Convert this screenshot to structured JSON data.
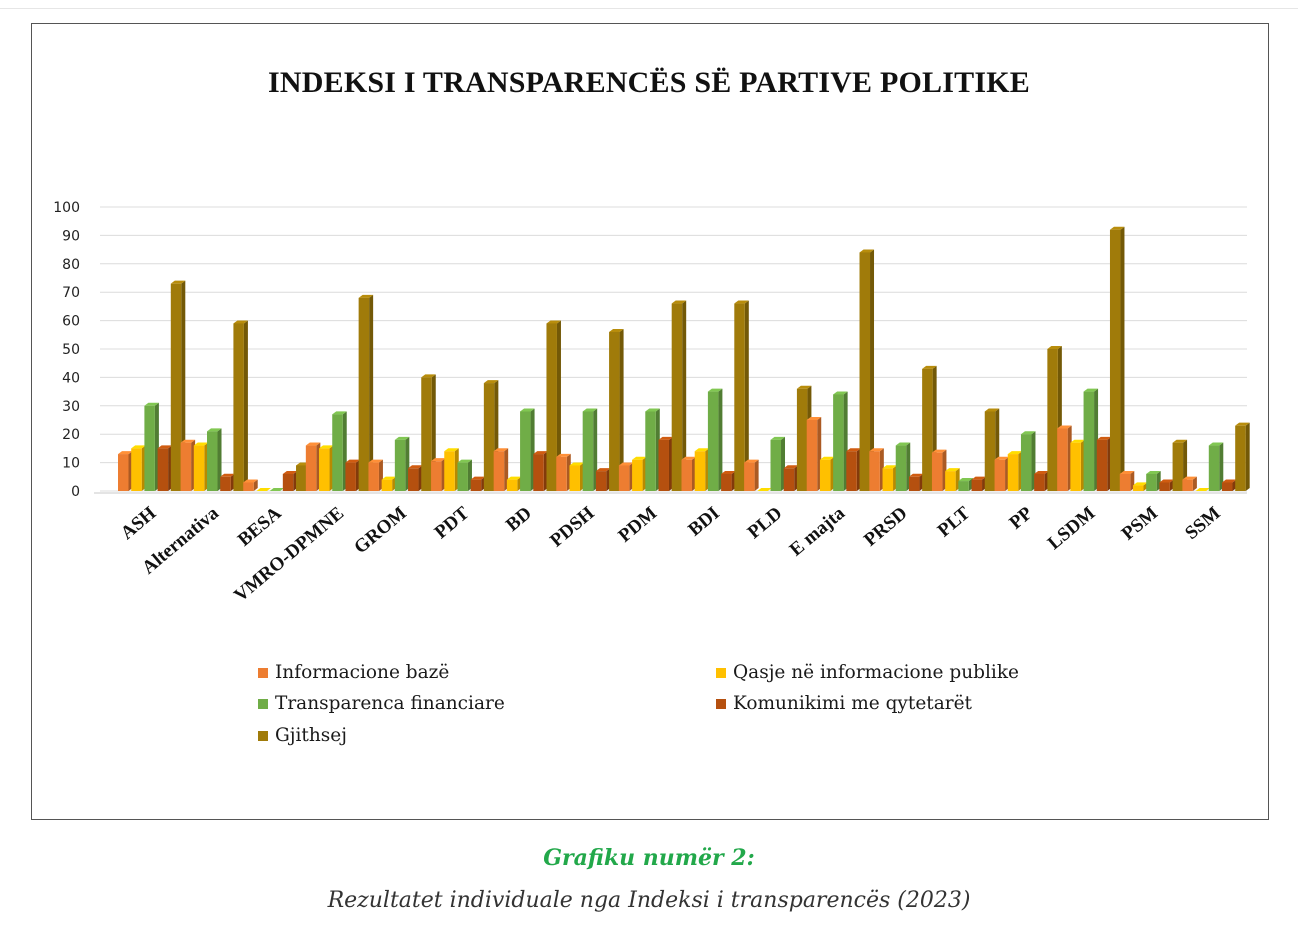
{
  "chart_data": {
    "type": "bar",
    "title": "INDEKSI I TRANSPARENCËS SË PARTIVE POLITIKE",
    "categories": [
      "ASH",
      "Alternativa",
      "BESA",
      "VMRO-DPMNE",
      "GROM",
      "PDT",
      "BD",
      "PDSH",
      "PDM",
      "BDI",
      "PLD",
      "E majta",
      "PRSD",
      "PLT",
      "PP",
      "LSDM",
      "PSM",
      "SSM"
    ],
    "series": [
      {
        "name": "Informacione bazë",
        "color": "#ed7d31",
        "values": [
          13,
          17,
          3,
          16,
          10,
          10.5,
          14,
          12,
          9,
          11,
          10,
          25,
          14,
          13.5,
          11,
          22,
          6,
          4
        ]
      },
      {
        "name": "Qasje në informacione publike",
        "color": "#ffc000",
        "values": [
          15,
          16,
          0,
          15,
          4,
          14,
          4,
          9,
          11,
          14,
          0,
          11,
          8,
          7,
          13,
          17,
          2,
          0
        ]
      },
      {
        "name": "Transparenca financiare",
        "color": "#70ad47",
        "values": [
          30,
          21,
          0,
          27,
          18,
          10,
          28,
          28,
          28,
          35,
          18,
          34,
          16,
          3.5,
          20,
          35,
          6,
          16
        ]
      },
      {
        "name": "Komunikimi me qytetarët",
        "color": "#b5500f",
        "values": [
          15,
          5,
          6,
          10,
          8,
          4,
          13,
          7,
          18,
          6,
          8,
          14,
          5,
          4,
          6,
          18,
          3,
          3
        ]
      },
      {
        "name": "Gjithsej",
        "color": "#a07b0a",
        "values": [
          73,
          59,
          9,
          68,
          40,
          38,
          59,
          56,
          66,
          66,
          36,
          84,
          43,
          28,
          50,
          92,
          17,
          23
        ]
      }
    ],
    "ylim": [
      0,
      100
    ],
    "yticks": [
      0,
      10,
      20,
      30,
      40,
      50,
      60,
      70,
      80,
      90,
      100
    ],
    "grid": true,
    "legend_position": "bottom"
  },
  "caption": {
    "title": "Grafiku numër 2:",
    "subtitle": "Rezultatet individuale nga Indeksi i transparencës (2023)"
  }
}
